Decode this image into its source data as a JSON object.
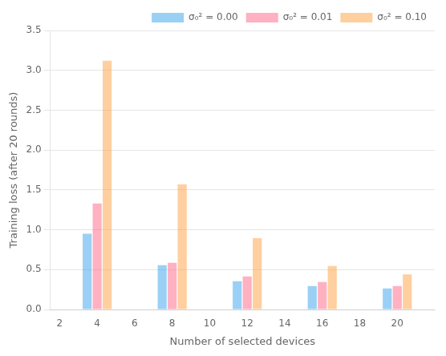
{
  "chart_data": {
    "type": "bar",
    "x": [
      4,
      8,
      12,
      16,
      20
    ],
    "series": [
      {
        "name": "σ₀² = 0.00",
        "values": [
          0.95,
          0.555,
          0.355,
          0.295,
          0.265
        ]
      },
      {
        "name": "σ₀² = 0.01",
        "values": [
          1.33,
          0.585,
          0.415,
          0.345,
          0.295
        ]
      },
      {
        "name": "σ₀² = 0.10",
        "values": [
          3.12,
          1.57,
          0.895,
          0.545,
          0.44
        ]
      }
    ],
    "xlabel": "Number of selected devices",
    "ylabel": "Training loss (after 20 rounds)",
    "xlim": [
      1.5,
      22.0
    ],
    "xticks": [
      2,
      4,
      6,
      8,
      10,
      12,
      14,
      16,
      18,
      20
    ],
    "ylim": [
      0,
      3.5
    ],
    "yticks": [
      {
        "value": 0,
        "label": "0.0"
      },
      0.5,
      {
        "value": 1.0,
        "label": "1.0"
      },
      1.5,
      {
        "value": 2.0,
        "label": "2.0"
      },
      2.5,
      {
        "value": 3.0,
        "label": "3.0"
      },
      3.5
    ],
    "grid": "y",
    "legend": "upper right"
  }
}
